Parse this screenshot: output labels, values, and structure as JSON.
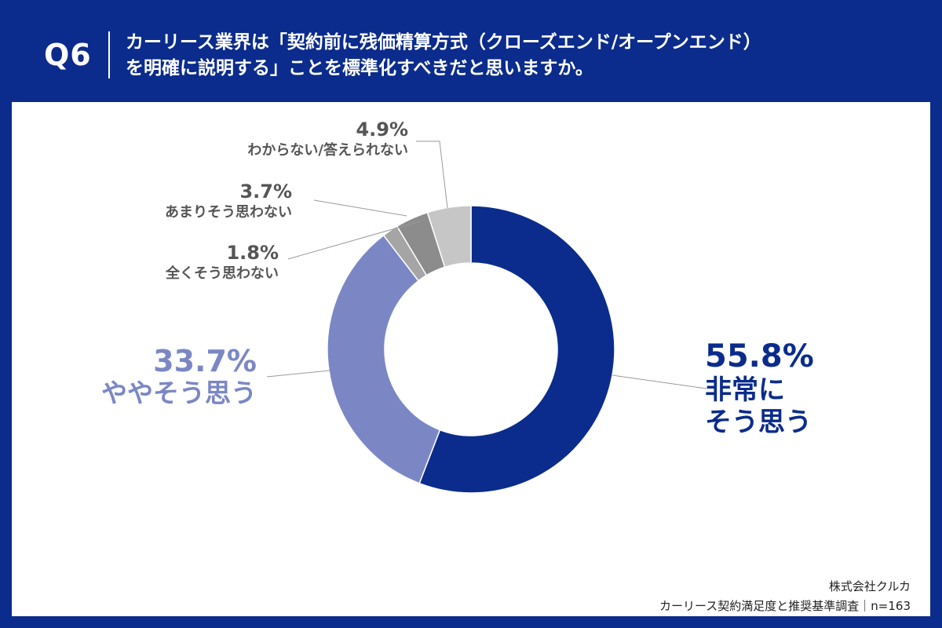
{
  "header": {
    "q_number": "Q6",
    "question_line1": "カーリース業界は「契約前に残価精算方式（クローズエンド/オープンエンド）",
    "question_line2": "を明確に説明する」ことを標準化すべきだと思いますか。"
  },
  "chart_data": {
    "type": "pie",
    "variant": "donut",
    "categories": [
      "非常にそう思う",
      "ややそう思う",
      "全くそう思わない",
      "あまりそう思わない",
      "わからない/答えられない"
    ],
    "values": [
      55.8,
      33.7,
      1.8,
      3.7,
      4.9
    ],
    "value_labels": [
      "55.8%",
      "33.7%",
      "1.8%",
      "3.7%",
      "4.9%"
    ],
    "colors": [
      "#0b2c8c",
      "#7b87c4",
      "#a5a5a5",
      "#8c8c8c",
      "#c6c6c6"
    ],
    "start": "12 o'clock",
    "direction": "clockwise"
  },
  "labels": {
    "slice1_pct": "55.8%",
    "slice1_line1": "非常に",
    "slice1_line2": "そう思う",
    "slice2_pct": "33.7%",
    "slice2_name": "ややそう思う",
    "slice3_pct": "1.8%",
    "slice3_name": "全くそう思わない",
    "slice4_pct": "3.7%",
    "slice4_name": "あまりそう思わない",
    "slice5_pct": "4.9%",
    "slice5_name": "わからない/答えられない"
  },
  "footer": {
    "company": "株式会社クルカ",
    "survey": "カーリース契約満足度と推奨基準調査｜n=163"
  }
}
